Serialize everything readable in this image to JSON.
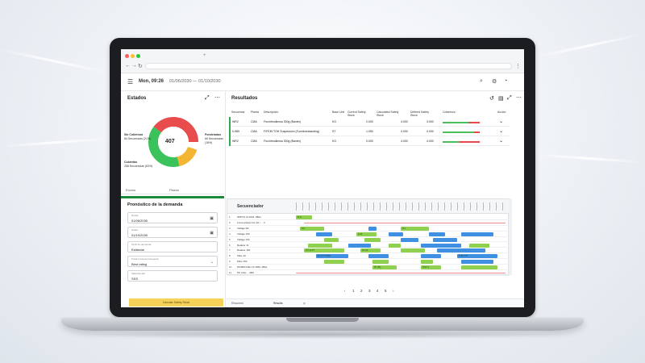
{
  "app": {
    "date_label": "Mon, 09:26",
    "date_range": "01/06/2030 — 01/10/2030"
  },
  "estados": {
    "title": "Estados",
    "total": "407",
    "labels": [
      {
        "name": "Sin Cobertura",
        "sub": "84 Secuencias (21%)"
      },
      {
        "name": "Ponderadas",
        "sub": "66 Secuencias (16%)"
      },
      {
        "name": "Cubiertas",
        "sub": "258 Secuencias (63%)"
      }
    ],
    "colors": {
      "red": "#e84c4c",
      "yellow": "#f2b632",
      "green": "#3cc25a"
    },
    "tabs": [
      "Envíos",
      "Plazos"
    ]
  },
  "pronostico": {
    "title": "Pronóstico de la demanda",
    "fields": [
      {
        "label": "Desde",
        "value": "01/06/2030"
      },
      {
        "label": "Hasta",
        "value": "01/10/2030"
      },
      {
        "label": "Perfil de demanda",
        "value": "Estándar"
      },
      {
        "label": "Preferencia de búsqueda",
        "value": "Best rating"
      },
      {
        "label": "Material Hall",
        "value": "SSS"
      }
    ],
    "button_label": "Calcular Safety Stock"
  },
  "resultados": {
    "title": "Resultados",
    "columns": [
      "Secuencia",
      "Planta",
      "Descripción",
      "Base Unit",
      "Current Safety Stock",
      "Calculated Safety Stock",
      "Defined Safety Stock",
      "Cobertura",
      "Acción"
    ],
    "rows": [
      {
        "seq": "WR2",
        "plant": "CI8A",
        "desc": "Fruchtmolkewa 300g (Banter)",
        "unit": "KG",
        "cur": "2.000",
        "calc": "4.000",
        "def": "3.000",
        "pct": 0.7
      },
      {
        "seq": "0-989",
        "plant": "CI8A",
        "desc": "F/FEIN TOH Suspension (Furniturestanding)",
        "unit": "ST",
        "cur": "1.050",
        "calc": "4.000",
        "def": "4.000",
        "pct": 0.85
      },
      {
        "seq": "WR2",
        "plant": "CI8A",
        "desc": "Fruchtmolkewa 300g (Banter)",
        "unit": "KG",
        "cur": "0.000",
        "calc": "4.000",
        "def": "4.000",
        "pct": 0.45
      }
    ]
  },
  "gantt": {
    "header": "Secuenciador",
    "rows": [
      {
        "n": "1",
        "name": "3RP7(4 (0-1623, 0BA)"
      },
      {
        "n": "2",
        "name": "Línea granja Cuc 10 / ... 3"
      },
      {
        "n": "3",
        "name": "Vollage Mil"
      },
      {
        "n": "4",
        "name": "Vollage 152"
      },
      {
        "n": "5",
        "name": "Vollage 152"
      },
      {
        "n": "6",
        "name": "Reaktor 11"
      },
      {
        "n": "7",
        "name": "Reaktor 152"
      },
      {
        "n": "8",
        "name": "Filter 10"
      },
      {
        "n": "9",
        "name": "Filter 152"
      },
      {
        "n": "10",
        "name": "PF/M84 Filler (0-1652, 0BA)"
      },
      {
        "n": "11",
        "name": "PF Ciclo ... 0BA"
      }
    ],
    "block_labels": [
      "B.11",
      "R.6",
      "R.2",
      "R.30",
      "R.5.12.PT",
      "B.6.00",
      "R.4.1.PT 6200",
      "N.30.4.PT",
      "PF (50)",
      "F(50.7)"
    ]
  },
  "pagination": [
    "1",
    "2",
    "3",
    "4",
    "5"
  ],
  "bottom_tabs": [
    "Resumen",
    "Results"
  ]
}
